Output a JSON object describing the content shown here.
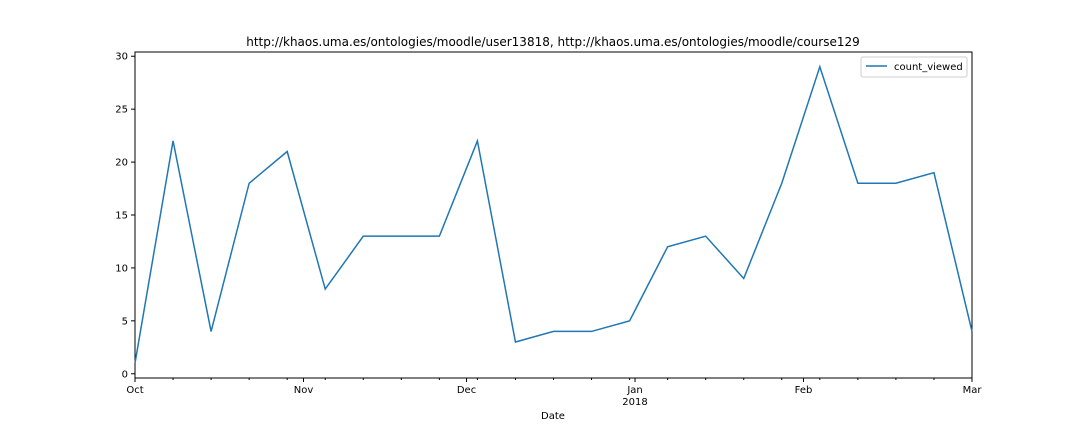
{
  "chart_data": {
    "type": "line",
    "title": "http://khaos.uma.es/ontologies/moodle/user13818, http://khaos.uma.es/ontologies/moodle/course129",
    "xlabel": "Date",
    "ylabel": "",
    "x": [
      "2017-10-01",
      "2017-10-08",
      "2017-10-15",
      "2017-10-22",
      "2017-10-29",
      "2017-11-05",
      "2017-11-12",
      "2017-11-19",
      "2017-11-26",
      "2017-12-03",
      "2017-12-10",
      "2017-12-17",
      "2017-12-24",
      "2017-12-31",
      "2018-01-07",
      "2018-01-14",
      "2018-01-21",
      "2018-01-28",
      "2018-02-04",
      "2018-02-11",
      "2018-02-18",
      "2018-02-25",
      "2018-03-04"
    ],
    "series": [
      {
        "name": "count_viewed",
        "color": "#1f77b4",
        "values": [
          1,
          22,
          4,
          18,
          21,
          8,
          13,
          13,
          13,
          22,
          3,
          4,
          4,
          5,
          12,
          13,
          9,
          18,
          29,
          18,
          18,
          19,
          4
        ]
      }
    ],
    "xlim": [
      "2017-10-01",
      "2018-03-04"
    ],
    "ylim": [
      -0.4,
      30.4
    ],
    "y_ticks": [
      0,
      5,
      10,
      15,
      20,
      25,
      30
    ],
    "x_tick_labels": [
      {
        "date": "2017-10-01",
        "label": "Oct",
        "sublabel": ""
      },
      {
        "date": "2017-11-01",
        "label": "Nov",
        "sublabel": ""
      },
      {
        "date": "2017-12-01",
        "label": "Dec",
        "sublabel": ""
      },
      {
        "date": "2018-01-01",
        "label": "Jan",
        "sublabel": "2018"
      },
      {
        "date": "2018-02-01",
        "label": "Feb",
        "sublabel": ""
      },
      {
        "date": "2018-03-04",
        "label": "Mar",
        "sublabel": ""
      }
    ],
    "grid": false,
    "legend_position": "top-right"
  }
}
